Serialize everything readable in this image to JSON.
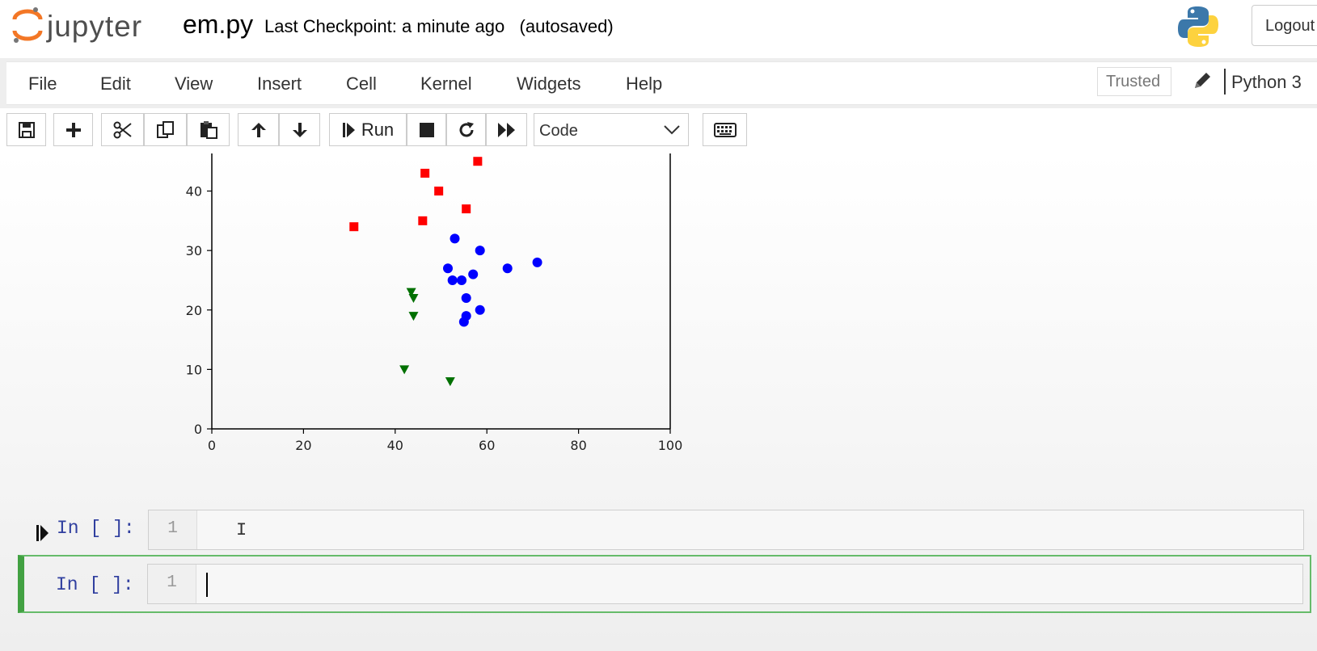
{
  "header": {
    "logo_text": "jupyter",
    "notebook_name": "em.py",
    "checkpoint_text": "Last Checkpoint: a minute ago   (autosaved)",
    "logout_label": "Logout",
    "python_logo_icon": "python-logo-icon"
  },
  "menubar": {
    "items": [
      "File",
      "Edit",
      "View",
      "Insert",
      "Cell",
      "Kernel",
      "Widgets",
      "Help"
    ],
    "trusted_label": "Trusted",
    "kernel_name": "Python 3"
  },
  "toolbar": {
    "run_label": "Run",
    "cell_type": "Code",
    "icons": [
      "save-icon",
      "plus-icon",
      "cut-icon",
      "copy-icon",
      "paste-icon",
      "arrow-up-icon",
      "arrow-down-icon",
      "run-icon",
      "stop-icon",
      "restart-icon",
      "fast-forward-icon",
      "keyboard-icon"
    ]
  },
  "chart_data": {
    "type": "scatter",
    "xlim": [
      0,
      100
    ],
    "ylim": [
      0,
      47
    ],
    "xticks": [
      "0",
      "20",
      "40",
      "60",
      "80",
      "100"
    ],
    "yticks": [
      "0",
      "10",
      "20",
      "30",
      "40"
    ],
    "series": [
      {
        "marker": "square",
        "color": "#ff0000",
        "points": [
          [
            31,
            34
          ],
          [
            46.5,
            43
          ],
          [
            49.5,
            40
          ],
          [
            58,
            45
          ],
          [
            46,
            35
          ],
          [
            55.5,
            37
          ]
        ]
      },
      {
        "marker": "circle",
        "color": "#0000ff",
        "points": [
          [
            53,
            32
          ],
          [
            58.5,
            30
          ],
          [
            51.5,
            27
          ],
          [
            52.5,
            25
          ],
          [
            54.5,
            25
          ],
          [
            57,
            26
          ],
          [
            64.5,
            27
          ],
          [
            71,
            28
          ],
          [
            55.5,
            22
          ],
          [
            58.5,
            20
          ],
          [
            55.5,
            19
          ],
          [
            55,
            18
          ]
        ]
      },
      {
        "marker": "triangle-down",
        "color": "#007000",
        "points": [
          [
            43.5,
            23
          ],
          [
            44,
            22
          ],
          [
            44,
            19
          ],
          [
            42,
            10
          ],
          [
            52,
            8
          ]
        ]
      }
    ]
  },
  "cells": [
    {
      "prompt": "In [ ]:",
      "line_number": "1",
      "content": ""
    },
    {
      "prompt": "In [ ]:",
      "line_number": "1",
      "content": ""
    }
  ]
}
